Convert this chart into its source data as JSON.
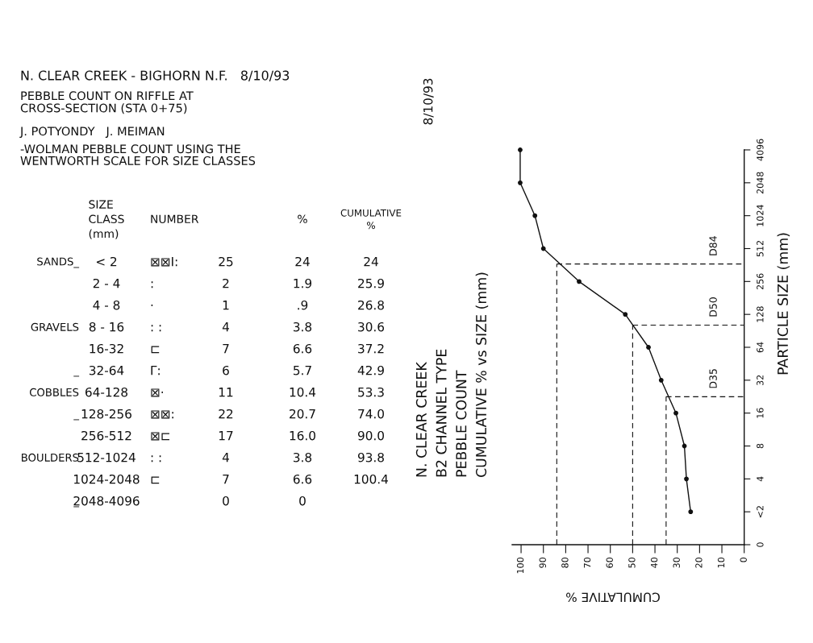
{
  "chart_data": [
    {
      "type": "other",
      "title": "N. CLEAR CREEK - BIGHORN N.F.   8/10/93",
      "subtitle": "PEBBLE COUNT ON RIFFLE AT\nCROSS-SECTION (STA 0+75)",
      "annotations": [
        "J. POTYONDY   J. MEIMAN",
        "-WOLMAN PEBBLE COUNT USING THE\nWENTWORTH SCALE FOR SIZE CLASSES",
        "\tSIZE\nCLASS\n(mm)\tNUMBER\t\t%\tCUMULATIVE\n%",
        "SANDS_\t< 2\t⊠⊠I:\t25\t24\t24",
        "\t2 - 4\t:\t2\t1.9\t25.9",
        "\t4 - 8\t·\t1\t.9\t26.8",
        "GRAVELS\t8 - 16\t: :\t4\t3.8\t30.6",
        "\t16-32\t⊏\t7\t6.6\t37.2",
        "_\t32-64\tΓ:\t6\t5.7\t42.9",
        "COBBLES\t64-128\t⊠·\t11\t10.4\t53.3",
        "_\t128-256\t⊠⊠:\t22\t20.7\t74.0",
        "\t256-512\t⊠⊏\t17\t16.0\t90.0",
        "BOULDERS\t512-1024\t: :\t4\t3.8\t93.8",
        "\t1024-2048\t⊏\t7\t6.6\t100.4",
        "_\t2048-4096\t\t0\t0\t"
      ]
    },
    {
      "type": "line",
      "title": "N. CLEAR CREEK\nB2 CHANNEL TYPE\nPEBBLE COUNT\nCUMULATIVE % vs SIZE (mm)",
      "xlabel": "CUMULATIVE %",
      "ylabel": "PARTICLE SIZE (mm)",
      "annotations": [
        "8/10/93"
      ],
      "x": [
        24,
        25.9,
        26.8,
        30.6,
        37.2,
        42.9,
        53.3,
        74.0,
        90.0,
        93.8,
        100.4,
        100.4
      ],
      "values": [
        2,
        4,
        8,
        16,
        32,
        64,
        128,
        256,
        512,
        1024,
        2048,
        4096
      ],
      "color": "#111111",
      "marker": "circle",
      "line_style": "solid",
      "log": "y",
      "xlim": [
        104,
        0
      ],
      "xticks": [
        100,
        90,
        80,
        70,
        60,
        50,
        40,
        30,
        20,
        10,
        0
      ],
      "ylim": [
        0,
        4096
      ],
      "yticks": [
        0,
        {
          "value": 2,
          "label": "<2"
        },
        4,
        8,
        16,
        32,
        64,
        128,
        256,
        512,
        1024,
        2048,
        4096
      ],
      "ref_lines": [
        {
          "axis": "x",
          "value": 84,
          "line_style": "dashed"
        },
        {
          "axis": "y",
          "value": 370,
          "label": "D84",
          "line_style": "dashed"
        },
        {
          "axis": "x",
          "value": 50,
          "line_style": "dashed"
        },
        {
          "axis": "y",
          "value": 102,
          "label": "D50",
          "line_style": "dashed"
        },
        {
          "axis": "x",
          "value": 35,
          "line_style": "dashed"
        },
        {
          "axis": "y",
          "value": 22.6,
          "label": "D35",
          "line_style": "dashed"
        }
      ]
    }
  ]
}
